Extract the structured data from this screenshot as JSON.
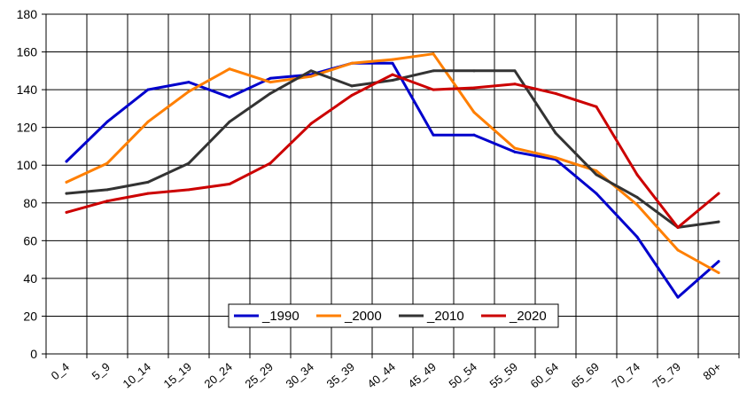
{
  "chart_data": {
    "type": "line",
    "title": "",
    "xlabel": "",
    "ylabel": "",
    "categories": [
      "0_4",
      "5_9",
      "10_14",
      "15_19",
      "20_24",
      "25_29",
      "30_34",
      "35_39",
      "40_44",
      "45_49",
      "50_54",
      "55_59",
      "60_64",
      "65_69",
      "70_74",
      "75_79",
      "80+"
    ],
    "ylim": [
      0,
      180
    ],
    "yticks": [
      0,
      20,
      40,
      60,
      80,
      100,
      120,
      140,
      160,
      180
    ],
    "grid": true,
    "legend_position": "bottom-center",
    "series": [
      {
        "name": "_1990",
        "color": "#0000cc",
        "values": [
          102,
          123,
          140,
          144,
          136,
          146,
          148,
          154,
          154,
          116,
          116,
          107,
          103,
          85,
          62,
          30,
          49
        ]
      },
      {
        "name": "_2000",
        "color": "#ff7f00",
        "values": [
          91,
          101,
          123,
          139,
          151,
          144,
          147,
          154,
          156,
          159,
          128,
          109,
          104,
          97,
          79,
          55,
          43
        ]
      },
      {
        "name": "_2010",
        "color": "#333333",
        "values": [
          85,
          87,
          91,
          101,
          123,
          138,
          150,
          142,
          145,
          150,
          150,
          150,
          117,
          95,
          83,
          67,
          70
        ]
      },
      {
        "name": "_2020",
        "color": "#cc0000",
        "values": [
          75,
          81,
          85,
          87,
          90,
          101,
          122,
          137,
          148,
          140,
          141,
          143,
          138,
          131,
          95,
          67,
          85
        ]
      }
    ]
  }
}
